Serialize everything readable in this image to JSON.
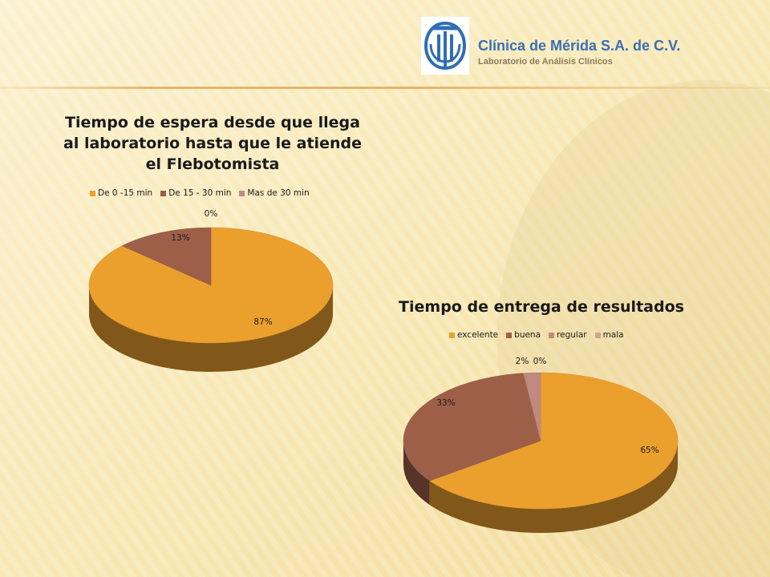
{
  "header": {
    "title": "Clínica de Mérida S.A. de C.V.",
    "subtitle": "Laboratorio de Análisis Clínicos"
  },
  "colors": {
    "orange": "#eba02d",
    "brown": "#9e5f49",
    "mauve": "#c08a80",
    "pink": "#d4a191",
    "logo_blue": "#2f6eb5"
  },
  "chart_data": [
    {
      "type": "pie",
      "title": "Tiempo de espera desde que llega al laboratorio hasta que le atiende el Flebotomista",
      "categories": [
        "De 0 -15 min",
        "De 15 - 30 min",
        "Mas de 30 min"
      ],
      "values": [
        87,
        13,
        0
      ],
      "labels": [
        "87%",
        "13%",
        "0%"
      ],
      "legend": "top",
      "style": "3d"
    },
    {
      "type": "pie",
      "title": "Tiempo de entrega de resultados",
      "categories": [
        "excelente",
        "buena",
        "regular",
        "mala"
      ],
      "values": [
        65,
        33,
        2,
        0
      ],
      "labels": [
        "65%",
        "33%",
        "2%",
        "0%"
      ],
      "legend": "top",
      "style": "3d"
    }
  ]
}
